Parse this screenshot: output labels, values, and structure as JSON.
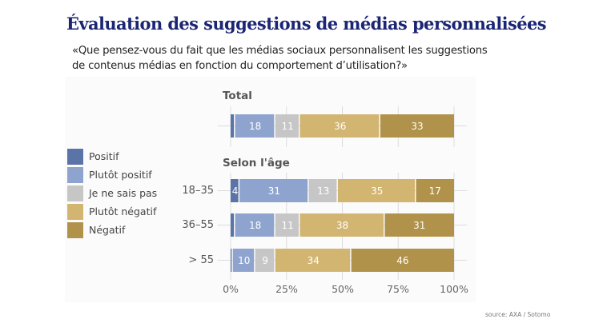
{
  "title": "Évaluation des suggestions de médias personnalisées",
  "subtitle": "«Que pensez-vous du fait que les médias sociaux personnalisent les suggestions de contenus médias en fonction du comportement d’utilisation?»",
  "source": "source: AXA / Sotomo",
  "chart_data": {
    "type": "bar",
    "orientation": "horizontal",
    "stacked": true,
    "title": "Évaluation des suggestions de médias personnalisées",
    "xlabel": "",
    "ylabel": "",
    "xlim": [
      0,
      100
    ],
    "x_ticks": [
      "0%",
      "25%",
      "50%",
      "75%",
      "100%"
    ],
    "x_tick_values": [
      0,
      25,
      50,
      75,
      100
    ],
    "grid": true,
    "legend_position": "left",
    "groups": [
      {
        "label": "Total",
        "categories": [
          ""
        ]
      },
      {
        "label": "Selon l'âge",
        "categories": [
          "18–35",
          "36–55",
          "> 55"
        ]
      }
    ],
    "categories": [
      "Total",
      "18–35",
      "36–55",
      "> 55"
    ],
    "series": [
      {
        "name": "Positif",
        "color": "#5a74a8",
        "values": [
          2,
          4,
          2,
          1
        ],
        "labels": [
          "",
          "4",
          "",
          ""
        ]
      },
      {
        "name": "Plutôt positif",
        "color": "#8ea4cf",
        "values": [
          18,
          31,
          18,
          10
        ],
        "labels": [
          "18",
          "31",
          "18",
          "10"
        ]
      },
      {
        "name": "Je ne sais pas",
        "color": "#c6c6c6",
        "values": [
          11,
          13,
          11,
          9
        ],
        "labels": [
          "11",
          "13",
          "11",
          "9"
        ]
      },
      {
        "name": "Plutôt négatif",
        "color": "#d3b572",
        "values": [
          36,
          35,
          38,
          34
        ],
        "labels": [
          "36",
          "35",
          "38",
          "34"
        ]
      },
      {
        "name": "Négatif",
        "color": "#b0924a",
        "values": [
          33,
          17,
          31,
          46
        ],
        "labels": [
          "33",
          "17",
          "31",
          "46"
        ]
      }
    ]
  }
}
